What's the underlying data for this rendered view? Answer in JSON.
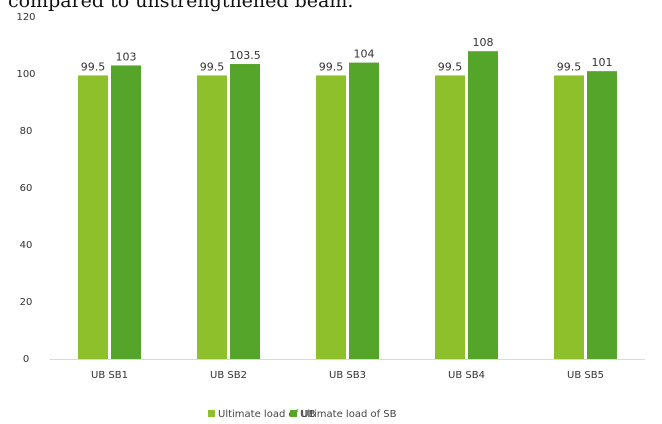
{
  "caption_fragment": "compared to unstrengthened beam.",
  "chart_data": {
    "type": "bar",
    "title": "",
    "xlabel": "",
    "ylabel": "",
    "ylim": [
      0,
      120
    ],
    "yticks": [
      0,
      20,
      40,
      60,
      80,
      100,
      120
    ],
    "grid": false,
    "legend_position": "bottom",
    "categories": [
      "UB SB1",
      "UB SB2",
      "UB SB3",
      "UB SB4",
      "UB SB5"
    ],
    "series": [
      {
        "name": "Ultimate load of UB",
        "color": "#8dc02a",
        "values": [
          99.5,
          99.5,
          99.5,
          99.5,
          99.5
        ],
        "labels": [
          "99.5",
          "99.5",
          "99.5",
          "99.5",
          "99.5"
        ]
      },
      {
        "name": "Ultimate load of SB",
        "color": "#55a52a",
        "values": [
          103,
          103.5,
          104,
          108,
          101
        ],
        "labels": [
          "103",
          "103.5",
          "104",
          "108",
          "101"
        ]
      }
    ]
  }
}
